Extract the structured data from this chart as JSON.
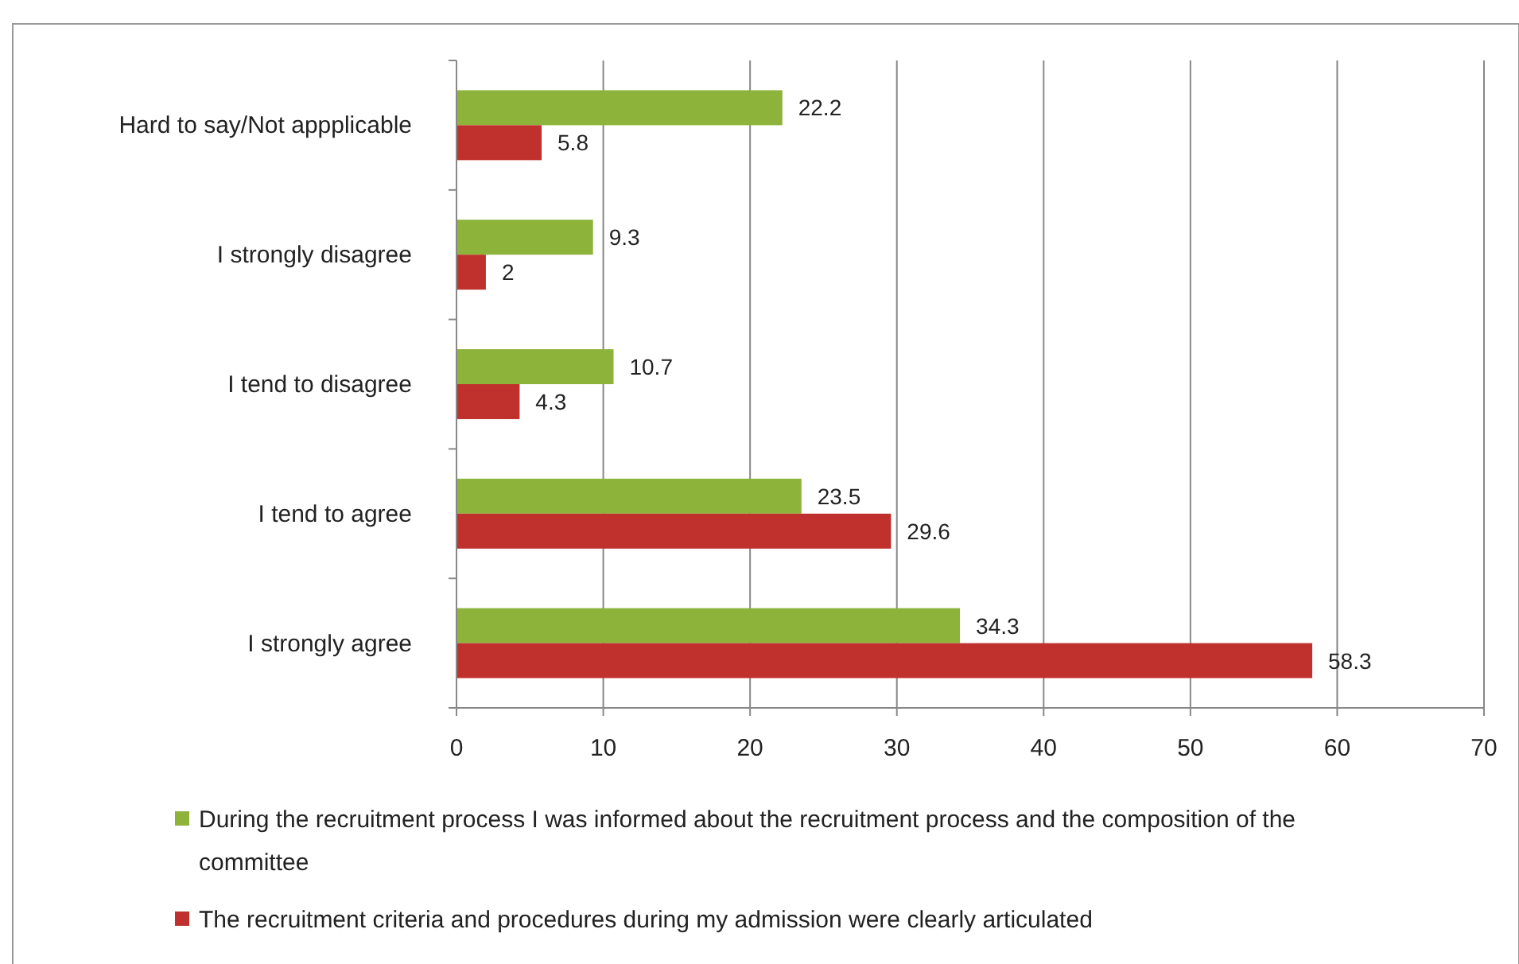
{
  "chart_data": {
    "type": "bar",
    "orientation": "horizontal",
    "categories": [
      "Hard to say/Not appplicable",
      "I strongly disagree",
      "I tend to disagree",
      "I tend to agree",
      "I strongly agree"
    ],
    "series": [
      {
        "name": "During the recruitment process I was informed about the recruitment process and the composition of the committee",
        "color": "#8db33a",
        "values": [
          22.2,
          9.3,
          10.7,
          23.5,
          34.3
        ]
      },
      {
        "name": "The recruitment criteria and procedures during my admission were clearly articulated",
        "color": "#c0302c",
        "values": [
          5.8,
          2,
          4.3,
          29.6,
          58.3
        ]
      }
    ],
    "xlim": [
      0,
      70
    ],
    "xticks": [
      0,
      10,
      20,
      30,
      40,
      50,
      60,
      70
    ],
    "grid": "x",
    "legend": "bottom",
    "data_labels": true
  }
}
